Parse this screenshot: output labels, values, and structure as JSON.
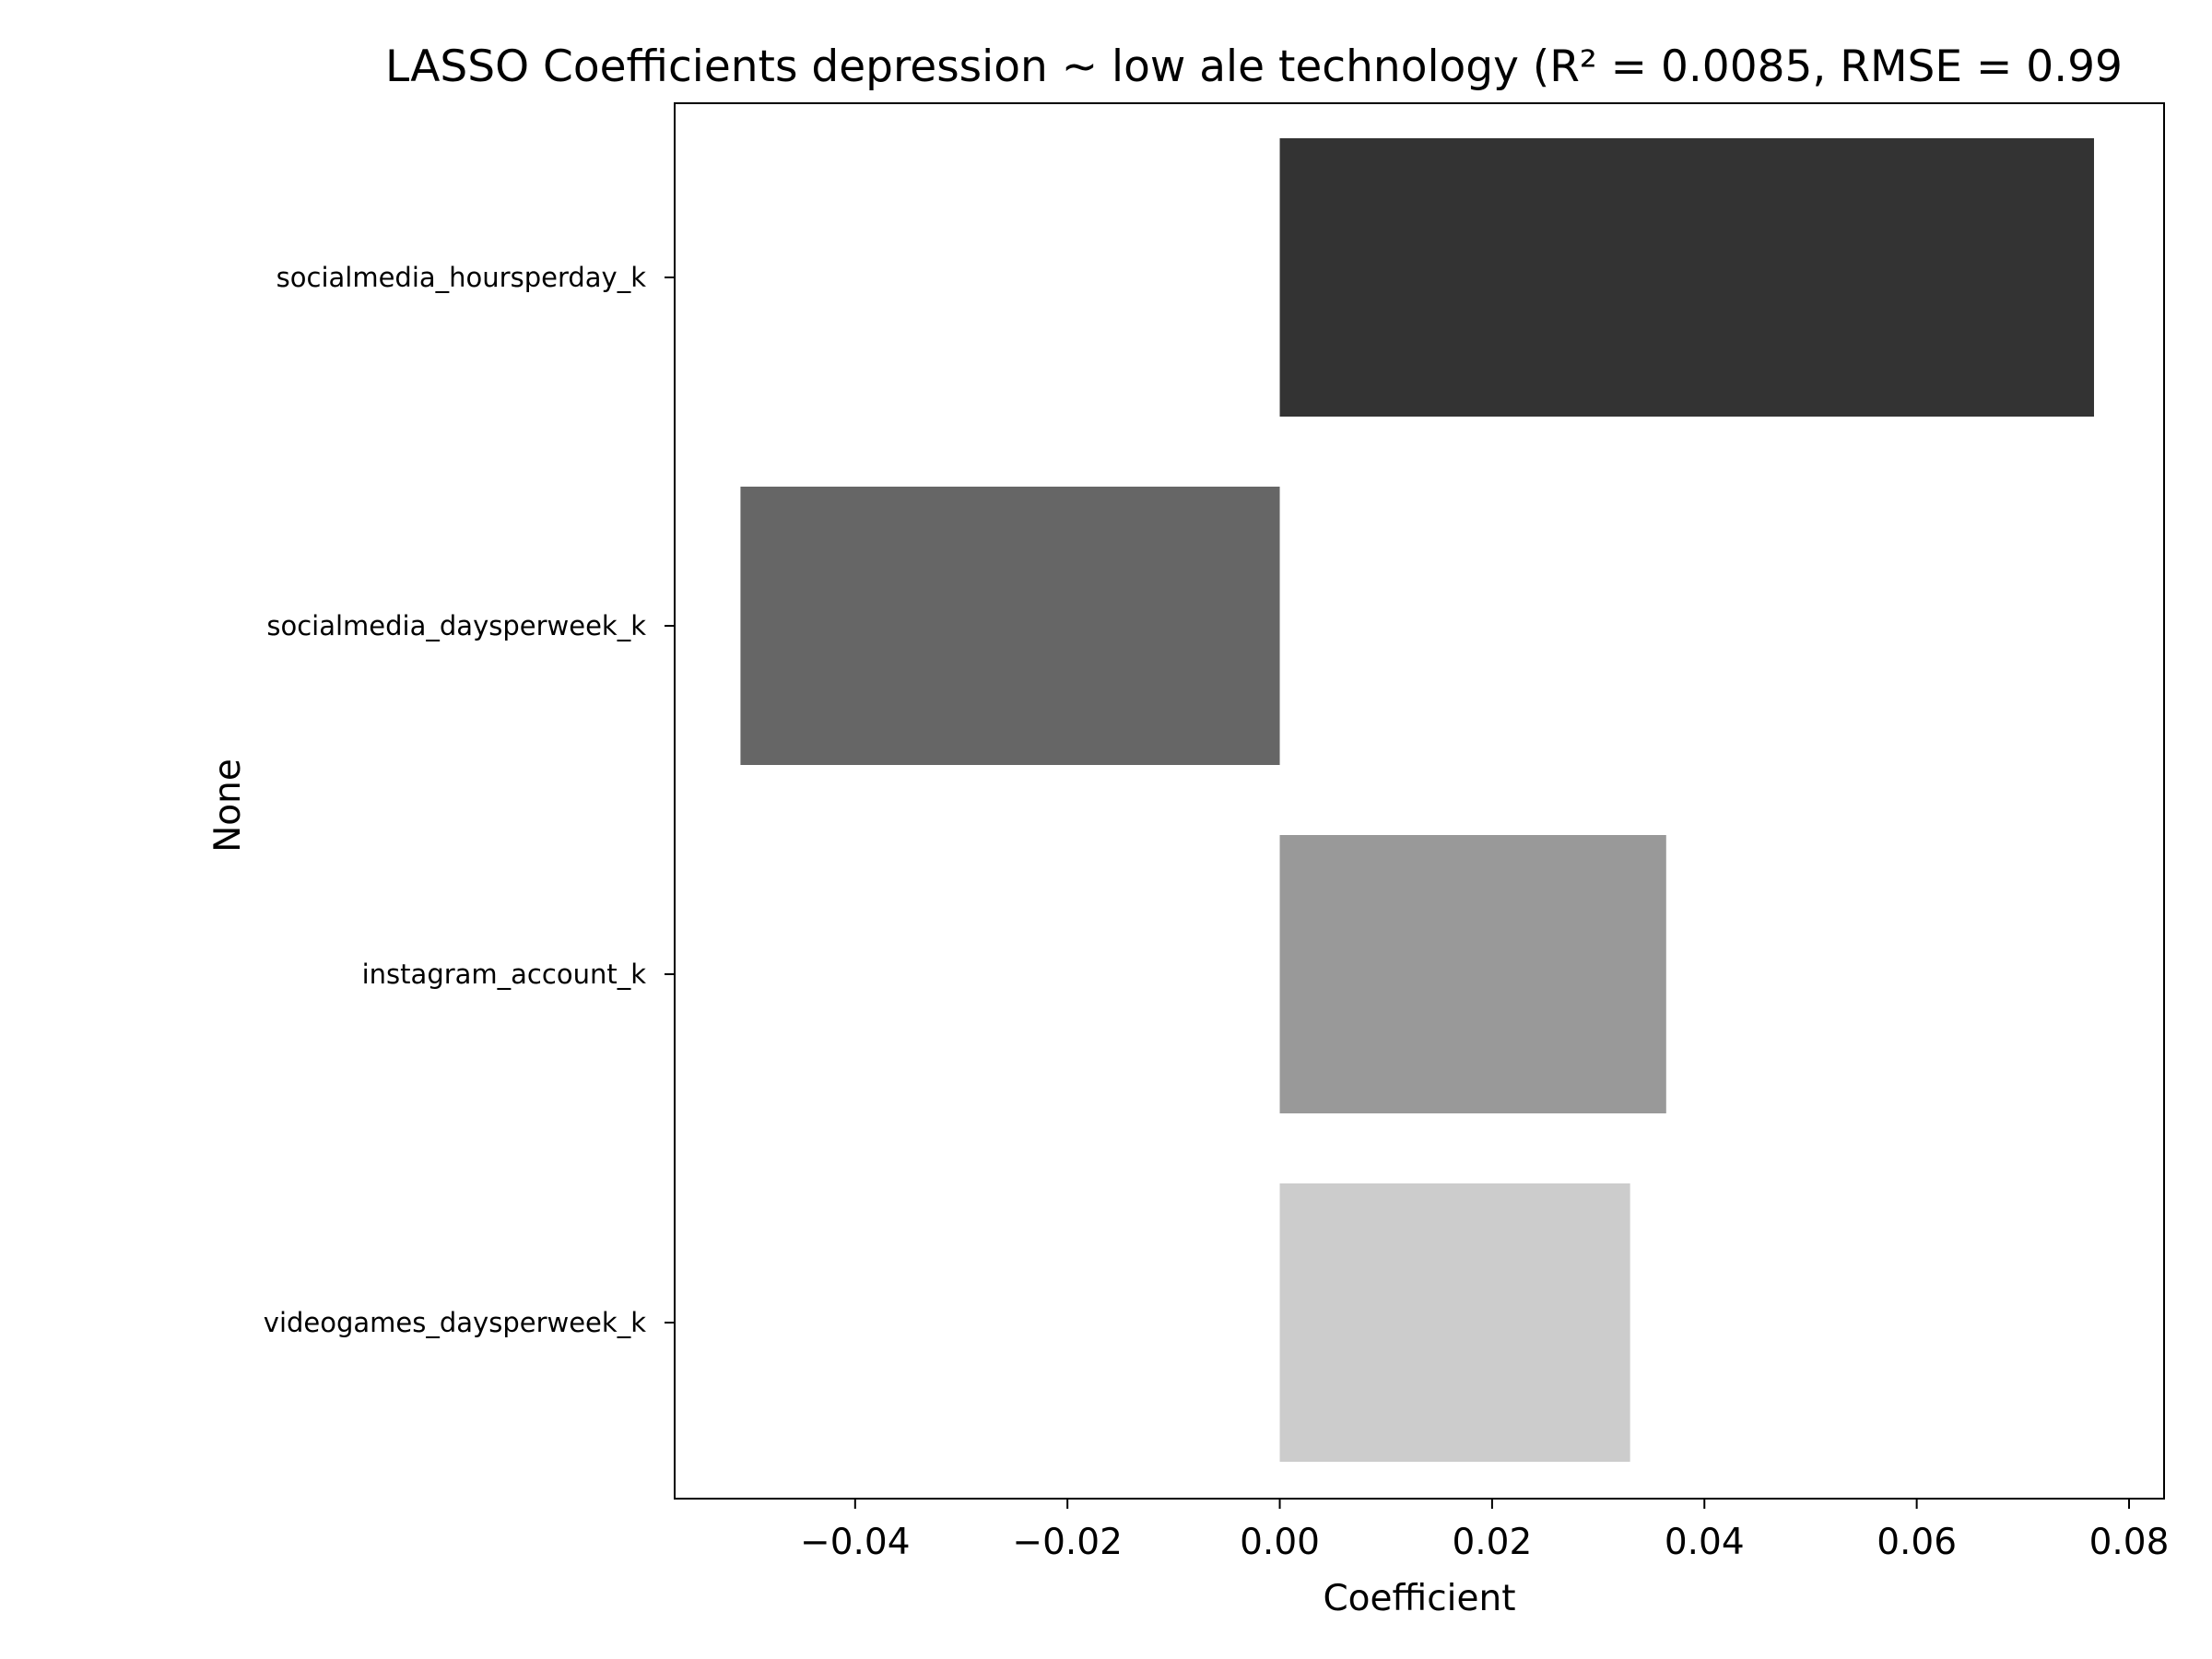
{
  "chart_data": {
    "type": "bar",
    "orientation": "horizontal",
    "title": "LASSO Coefficients depression ~ low ale technology (R² = 0.0085, RMSE = 0.99",
    "xlabel": "Coefficient",
    "ylabel": "None",
    "categories": [
      "socialmedia_hoursperday_k",
      "socialmedia_daysperweek_k",
      "instagram_account_k",
      "videogames_daysperweek_k"
    ],
    "values": [
      0.0767,
      -0.0508,
      0.0364,
      0.033
    ],
    "colors": [
      "#333333",
      "#666666",
      "#999999",
      "#cccccc"
    ],
    "xlim": [
      -0.057,
      0.0833
    ],
    "xticks": [
      -0.04,
      -0.02,
      0.0,
      0.02,
      0.04,
      0.06,
      0.08
    ],
    "xtick_labels": [
      "−0.04",
      "−0.02",
      "0.00",
      "0.02",
      "0.04",
      "0.06",
      "0.08"
    ],
    "grid": false,
    "legend": "none"
  }
}
